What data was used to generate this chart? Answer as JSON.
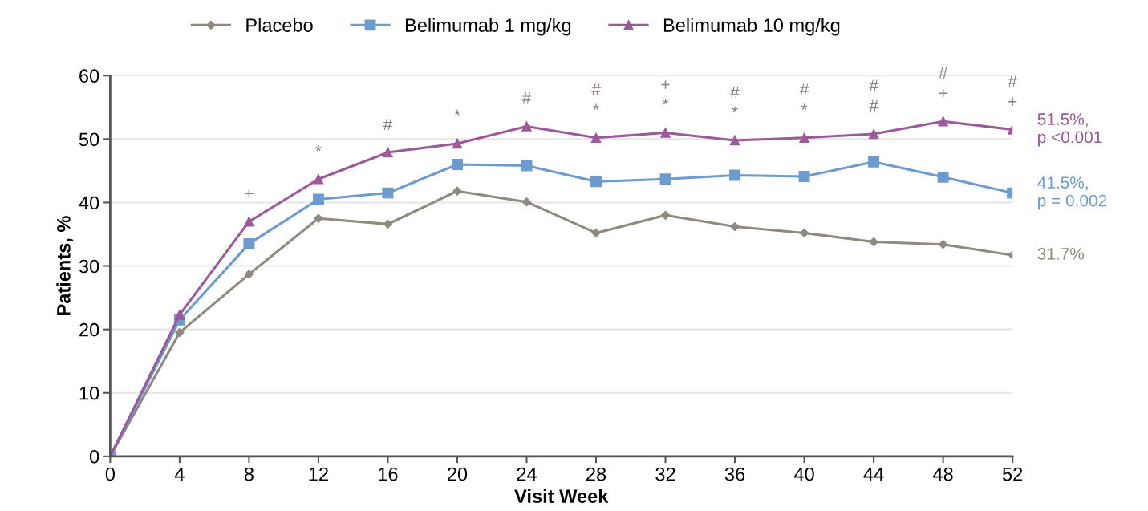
{
  "chart_data": {
    "type": "line",
    "xlabel": "Visit Week",
    "ylabel": "Patients, %",
    "x": [
      0,
      4,
      8,
      12,
      16,
      20,
      24,
      28,
      32,
      36,
      40,
      44,
      48,
      52
    ],
    "xlim": [
      0,
      52
    ],
    "xticks": [
      0,
      4,
      8,
      12,
      16,
      20,
      24,
      28,
      32,
      36,
      40,
      44,
      48,
      52
    ],
    "ylim": [
      0,
      60
    ],
    "yticks": [
      0,
      10,
      20,
      30,
      40,
      50,
      60
    ],
    "grid": "y",
    "legend": "top",
    "series": [
      {
        "name": "Placebo",
        "color": "#8e8a80",
        "marker": "diamond",
        "values": [
          0,
          19.5,
          28.7,
          37.5,
          36.6,
          41.8,
          40.1,
          35.2,
          38,
          36.2,
          35.2,
          33.8,
          33.4,
          31.7
        ]
      },
      {
        "name": "Belimumab 1 mg/kg",
        "color": "#6b9bd1",
        "marker": "square",
        "values": [
          0,
          21.5,
          33.5,
          40.5,
          41.5,
          46,
          45.8,
          43.3,
          43.7,
          44.3,
          44.1,
          46.4,
          44,
          41.5
        ]
      },
      {
        "name": "Belimumab 10 mg/kg",
        "color": "#9b5a9b",
        "marker": "triangle",
        "values": [
          0,
          22.3,
          37,
          43.7,
          47.9,
          49.3,
          52,
          50.2,
          51,
          49.8,
          50.2,
          50.8,
          52.8,
          51.5
        ]
      }
    ],
    "annotations": [
      {
        "text": "51.5%,\np <0.001",
        "x": 52,
        "y": 51.5
      },
      {
        "text": "41.5%,\np = 0.002",
        "x": 52,
        "y": 41.5
      },
      {
        "text": "31.7%",
        "x": 52,
        "y": 31.7
      },
      {
        "text": "+",
        "x": 8,
        "y": 37
      },
      {
        "text": "*",
        "x": 12,
        "y": 43.7
      },
      {
        "text": "#",
        "x": 16,
        "y": 47.9
      },
      {
        "text": "*",
        "x": 20,
        "y": 49.3
      },
      {
        "text": "#",
        "x": 24,
        "y": 52
      },
      {
        "text": "*",
        "x": 28,
        "y": 50.2
      },
      {
        "text": "#",
        "x": 28,
        "y": 50.2
      },
      {
        "text": "*",
        "x": 32,
        "y": 51
      },
      {
        "text": "+",
        "x": 32,
        "y": 51
      },
      {
        "text": "*",
        "x": 36,
        "y": 49.8
      },
      {
        "text": "#",
        "x": 36,
        "y": 49.8
      },
      {
        "text": "*",
        "x": 40,
        "y": 50.2
      },
      {
        "text": "#",
        "x": 40,
        "y": 50.2
      },
      {
        "text": "#",
        "x": 44,
        "y": 50.8
      },
      {
        "text": "#",
        "x": 44,
        "y": 50.8
      },
      {
        "text": "+",
        "x": 48,
        "y": 52.8
      },
      {
        "text": "#",
        "x": 48,
        "y": 52.8
      },
      {
        "text": "+",
        "x": 52,
        "y": 51.5
      },
      {
        "text": "#",
        "x": 52,
        "y": 51.5
      }
    ]
  }
}
